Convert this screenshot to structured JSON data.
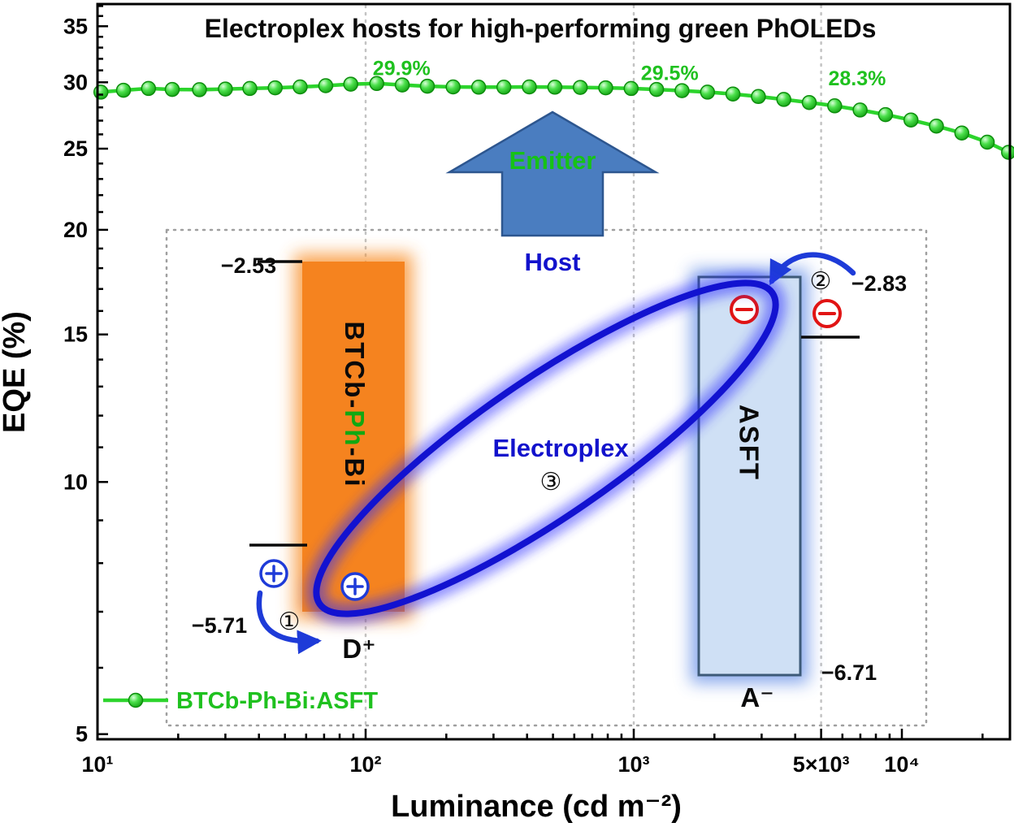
{
  "title": "Electroplex hosts for high-performing green PhOLEDs",
  "axes": {
    "xlabel": "Luminance (cd m⁻²)",
    "ylabel": "EQE (%)",
    "x_scale": "log",
    "y_scale": "log",
    "x_range": [
      10,
      25300
    ],
    "y_range": [
      4.93,
      37.2
    ],
    "x_ticks": [
      {
        "v": 10,
        "label": "10¹"
      },
      {
        "v": 100,
        "label": "10²"
      },
      {
        "v": 1000,
        "label": "10³"
      },
      {
        "v": 5000,
        "label": "5×10³"
      },
      {
        "v": 10000,
        "label": "10⁴"
      }
    ],
    "y_ticks": [
      5,
      10,
      15,
      20,
      25,
      30,
      35
    ],
    "grid_x_values": [
      100,
      1000,
      5000
    ]
  },
  "chart_data": {
    "type": "line",
    "title": "Electroplex hosts for high-performing green PhOLEDs",
    "xlabel": "Luminance (cd m⁻²)",
    "ylabel": "EQE (%)",
    "x_axis": "log, 10 to ~25000 cd m⁻²",
    "ylim": [
      5,
      37
    ],
    "grid": "vertical dotted at 100, 1000, 5000",
    "legend_position": "bottom-left",
    "series": [
      {
        "name": "BTCb-Ph-Bi:ASFT",
        "color": "#2cd42c",
        "x": [
          10.3,
          12.5,
          15.5,
          19,
          24,
          30,
          37,
          46,
          57,
          71,
          88,
          110,
          137,
          170,
          212,
          264,
          328,
          408,
          508,
          632,
          786,
          978,
          1217,
          1514,
          1884,
          2344,
          2916,
          3628,
          4514,
          5616,
          6987,
          8693,
          10815,
          13456,
          16741,
          20828,
          25000
        ],
        "y": [
          29.2,
          29.35,
          29.5,
          29.42,
          29.4,
          29.45,
          29.5,
          29.55,
          29.62,
          29.72,
          29.85,
          29.9,
          29.78,
          29.68,
          29.62,
          29.6,
          29.6,
          29.62,
          29.6,
          29.58,
          29.55,
          29.5,
          29.42,
          29.32,
          29.2,
          29.05,
          28.85,
          28.62,
          28.38,
          28.12,
          27.8,
          27.45,
          27.05,
          26.6,
          26.1,
          25.45,
          24.75
        ]
      }
    ],
    "annotations": [
      {
        "text": "29.9%",
        "x": 102,
        "y": 30.6
      },
      {
        "text": "29.5%",
        "x": 1020,
        "y": 30.2
      },
      {
        "text": "28.3%",
        "x": 5100,
        "y": 29.75
      }
    ]
  },
  "legend": {
    "label": "BTCb-Ph-Bi:ASFT"
  },
  "inset": {
    "emitter_label": "Emitter",
    "host_label": "Host",
    "electroplex_label": "Electroplex",
    "step_1": "①",
    "step_2": "②",
    "step_3": "③",
    "donor": {
      "name_pre": "BTCb-",
      "name_highlight": "Ph",
      "name_post": "-Bi",
      "lumo_level": "−2.53",
      "homo_level": "−5.71",
      "cation_label": "D⁺"
    },
    "acceptor": {
      "name": "ASFT",
      "lumo_level": "−2.83",
      "homo_level": "−6.71",
      "anion_label": "A⁻"
    }
  },
  "colors": {
    "series_green": "#2cd42c",
    "donor_orange": "#f5831f",
    "acceptor_blue_fill": "#cfe0f5",
    "electroplex_blue": "#1212d0",
    "arrow_blue": "#4a7dc0",
    "electron_red": "#e11414",
    "hole_blue": "#1e3bd8"
  }
}
